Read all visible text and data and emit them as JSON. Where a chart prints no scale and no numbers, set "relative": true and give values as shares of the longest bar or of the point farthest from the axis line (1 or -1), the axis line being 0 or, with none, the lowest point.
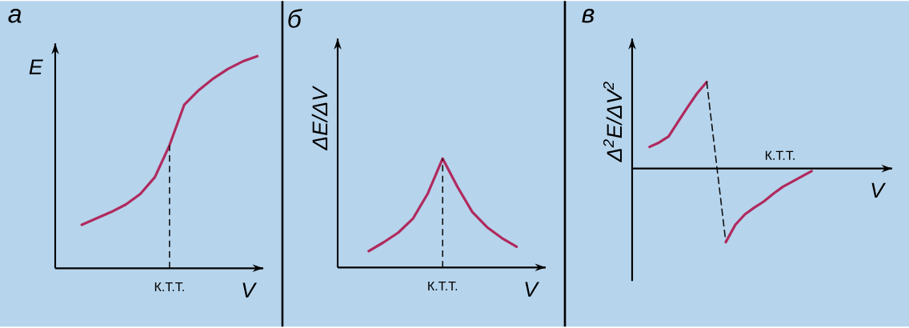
{
  "chart_data": [
    {
      "type": "line",
      "title": "а",
      "xlabel": "V",
      "ylabel": "E",
      "relative": true,
      "categories": [
        null,
        null,
        null,
        null,
        null,
        null,
        null,
        null,
        null,
        null,
        null,
        null,
        null
      ],
      "series": [
        {
          "color": "#b02a5e",
          "values": [
            0.205,
            0.235,
            0.265,
            0.3,
            0.35,
            0.43,
            0.58,
            0.77,
            0.84,
            0.895,
            0.94,
            0.975,
            1.0
          ]
        }
      ],
      "annotations": [
        "К.Т.Т."
      ]
    },
    {
      "type": "line",
      "title": "б",
      "xlabel": "V",
      "ylabel": "ΔE/ΔV",
      "relative": true,
      "categories": [
        null,
        null,
        null,
        null,
        null,
        null,
        null,
        null,
        null,
        null,
        null
      ],
      "series": [
        {
          "color": "#b02a5e",
          "values": [
            0.15,
            0.23,
            0.32,
            0.45,
            0.68,
            1.0,
            0.74,
            0.51,
            0.37,
            0.27,
            0.19
          ]
        }
      ],
      "annotations": [
        "К.Т.Т."
      ]
    },
    {
      "type": "line",
      "title": "в",
      "xlabel": "V",
      "ylabel": "Δ$^{2}$E/ΔV$^{2}$",
      "relative": true,
      "categories": [
        null,
        null,
        null,
        null,
        null,
        null,
        null,
        null,
        null,
        null,
        null,
        null,
        null,
        null,
        null,
        null,
        null,
        null
      ],
      "series": [
        {
          "color": "#b02a5e",
          "values": [
            0.25,
            0.3,
            0.37,
            0.54,
            0.71,
            0.87,
            1.0,
            null,
            null,
            null,
            null,
            null,
            null,
            null,
            null,
            null,
            null,
            null
          ]
        },
        {
          "color": "#111111",
          "line_style": "dashed",
          "values": [
            null,
            null,
            null,
            null,
            null,
            null,
            1.0,
            0.08,
            -0.85,
            null,
            null,
            null,
            null,
            null,
            null,
            null,
            null,
            null
          ]
        },
        {
          "color": "#b02a5e",
          "values": [
            null,
            null,
            null,
            null,
            null,
            null,
            null,
            null,
            -0.85,
            -0.65,
            -0.53,
            -0.45,
            -0.38,
            -0.29,
            -0.21,
            -0.15,
            -0.09,
            -0.03
          ]
        }
      ],
      "annotations": [
        "К.Т.Т."
      ]
    }
  ]
}
